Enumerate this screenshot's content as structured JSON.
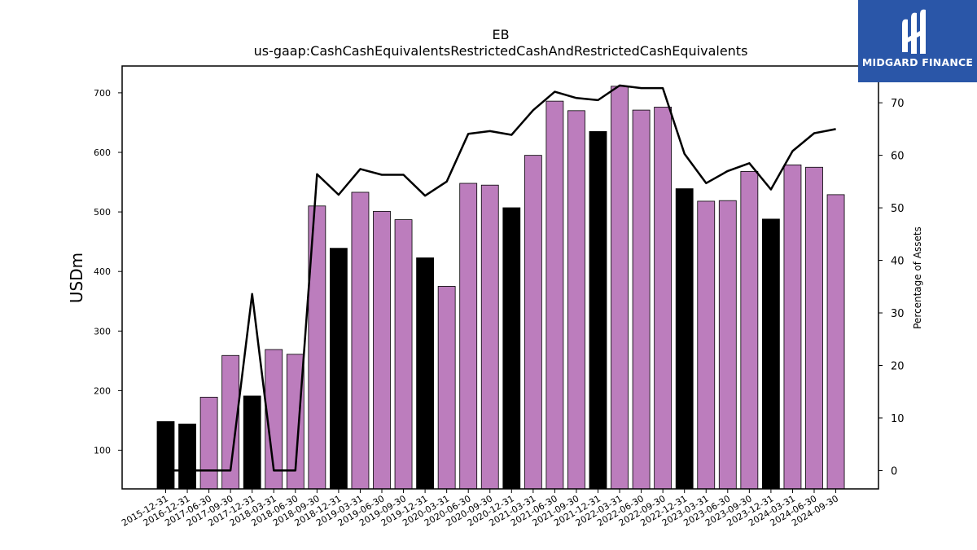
{
  "chart_data": {
    "type": "bar",
    "title": "EB",
    "subtitle": "us-gaap:CashCashEquivalentsRestrictedCashAndRestrictedCashEquivalents",
    "ylabel": "USDm",
    "y2label": "Percentage of Assets",
    "ylim": [
      35,
      745
    ],
    "y2lim": [
      -3.5,
      77
    ],
    "yticks": [
      100,
      200,
      300,
      400,
      500,
      600,
      700
    ],
    "y2ticks": [
      0,
      10,
      20,
      30,
      40,
      50,
      60,
      70
    ],
    "categories": [
      "2015-12-31",
      "2016-12-31",
      "2017-06-30",
      "2017-09-30",
      "2017-12-31",
      "2018-03-31",
      "2018-06-30",
      "2018-09-30",
      "2018-12-31",
      "2019-03-31",
      "2019-06-30",
      "2019-09-30",
      "2019-12-31",
      "2020-03-31",
      "2020-06-30",
      "2020-09-30",
      "2020-12-31",
      "2021-03-31",
      "2021-06-30",
      "2021-09-30",
      "2021-12-31",
      "2022-03-31",
      "2022-06-30",
      "2022-09-30",
      "2022-12-31",
      "2023-03-31",
      "2023-06-30",
      "2023-09-30",
      "2023-12-31",
      "2024-03-31",
      "2024-06-30",
      "2024-09-30"
    ],
    "series": [
      {
        "values": [
          148,
          144,
          189,
          259,
          191,
          269,
          261,
          510,
          439,
          533,
          501,
          487,
          423,
          375,
          548,
          545,
          507,
          595,
          686,
          670,
          635,
          711,
          671,
          676,
          539,
          518,
          519,
          568,
          488,
          579,
          575,
          529
        ],
        "bar_colors": [
          "#000000",
          "#000000",
          "#bc7dbd",
          "#bc7dbd",
          "#000000",
          "#bc7dbd",
          "#bc7dbd",
          "#bc7dbd",
          "#000000",
          "#bc7dbd",
          "#bc7dbd",
          "#bc7dbd",
          "#000000",
          "#bc7dbd",
          "#bc7dbd",
          "#bc7dbd",
          "#000000",
          "#bc7dbd",
          "#bc7dbd",
          "#bc7dbd",
          "#000000",
          "#bc7dbd",
          "#bc7dbd",
          "#bc7dbd",
          "#000000",
          "#bc7dbd",
          "#bc7dbd",
          "#bc7dbd",
          "#000000",
          "#bc7dbd",
          "#bc7dbd",
          "#bc7dbd"
        ]
      },
      {
        "type": "line",
        "axis": "right",
        "color": "#000000",
        "values": [
          0.0,
          0.0,
          0.0,
          0.0,
          33.6,
          0.0,
          0.0,
          56.4,
          52.5,
          57.4,
          56.3,
          56.3,
          52.3,
          55.0,
          64.1,
          64.6,
          63.9,
          68.6,
          72.1,
          70.9,
          70.5,
          73.3,
          72.8,
          72.8,
          60.3,
          54.7,
          57.0,
          58.5,
          53.5,
          60.8,
          64.2,
          65.0
        ]
      }
    ],
    "grid": false
  },
  "logo": {
    "text": "MIDGARD FINANCE",
    "bg": "#2a56a8"
  }
}
